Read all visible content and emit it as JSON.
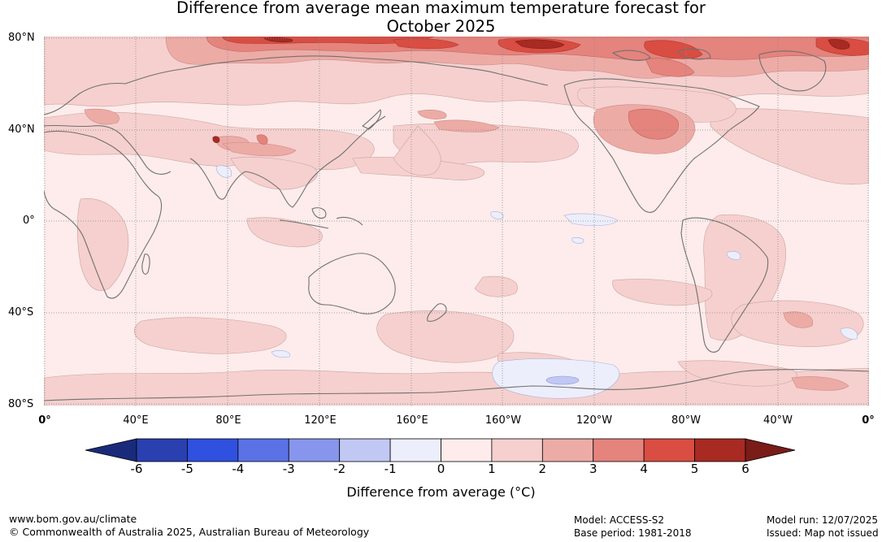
{
  "title": {
    "line1": "Difference from average mean maximum temperature forecast for",
    "line2": "October 2025"
  },
  "map": {
    "lat_labels": [
      "80°N",
      "40°N",
      "0°",
      "40°S",
      "80°S"
    ],
    "lon_labels": [
      "0°",
      "40°E",
      "80°E",
      "120°E",
      "160°E",
      "160°W",
      "120°W",
      "80°W",
      "40°W",
      "0°"
    ],
    "graticule_color": "#888888",
    "coastline_color": "#707070"
  },
  "colorbar": {
    "ticks": [
      "-6",
      "-5",
      "-4",
      "-3",
      "-2",
      "-1",
      "0",
      "1",
      "2",
      "3",
      "4",
      "5",
      "6"
    ],
    "colors": [
      "#1a2a7a",
      "#2a3fb0",
      "#3050e0",
      "#5a72e6",
      "#8796ec",
      "#c2c8f4",
      "#eceefc",
      "#fdeceb",
      "#f5d0ce",
      "#edaba6",
      "#e5837d",
      "#d94d42",
      "#a82a22",
      "#7a1c18"
    ],
    "label": "Difference from average (°C)"
  },
  "footer": {
    "url": "www.bom.gov.au/climate",
    "copyright": "© Commonwealth of Australia 2025, Australian Bureau of Meteorology",
    "model": "Model: ACCESS-S2",
    "base_period": "Base period: 1981-2018",
    "model_run": "Model run: 12/07/2025",
    "issued": "Issued: Map not issued"
  }
}
